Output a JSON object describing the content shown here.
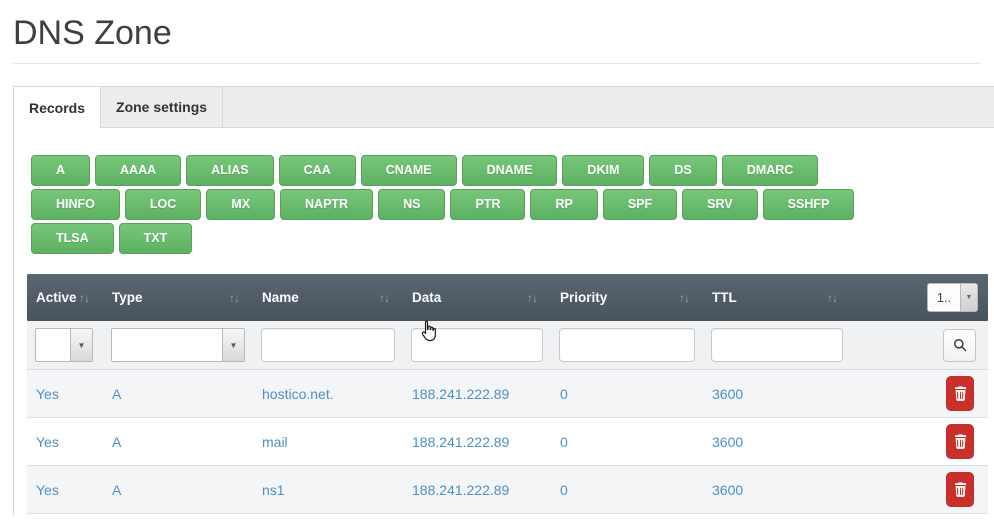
{
  "page": {
    "title": "DNS Zone"
  },
  "tabs": [
    {
      "label": "Records",
      "active": true
    },
    {
      "label": "Zone settings",
      "active": false
    }
  ],
  "record_type_rows": [
    [
      "A",
      "AAAA",
      "ALIAS",
      "CAA",
      "CNAME",
      "DNAME",
      "DKIM",
      "DS",
      "DMARC"
    ],
    [
      "HINFO",
      "LOC",
      "MX",
      "NAPTR",
      "NS",
      "PTR",
      "RP",
      "SPF",
      "SRV",
      "SSHFP"
    ],
    [
      "TLSA",
      "TXT"
    ]
  ],
  "table": {
    "columns": [
      {
        "label": "Active",
        "sortable": true
      },
      {
        "label": "Type",
        "sortable": true
      },
      {
        "label": "Name",
        "sortable": true
      },
      {
        "label": "Data",
        "sortable": true
      },
      {
        "label": "Priority",
        "sortable": true
      },
      {
        "label": "TTL",
        "sortable": true
      }
    ],
    "pagination": {
      "value": "1.."
    },
    "filters": {
      "active_value": "",
      "type_value": "",
      "name_value": "",
      "data_value": "",
      "priority_value": "",
      "ttl_value": ""
    },
    "rows": [
      {
        "active": "Yes",
        "type": "A",
        "name": "hostico.net.",
        "data": "188.241.222.89",
        "priority": "0",
        "ttl": "3600"
      },
      {
        "active": "Yes",
        "type": "A",
        "name": "mail",
        "data": "188.241.222.89",
        "priority": "0",
        "ttl": "3600"
      },
      {
        "active": "Yes",
        "type": "A",
        "name": "ns1",
        "data": "188.241.222.89",
        "priority": "0",
        "ttl": "3600"
      }
    ]
  },
  "icons": {
    "sort_glyph": "↑↓",
    "caret_glyph": "▼",
    "search": "search-icon",
    "trash": "trash-icon",
    "cursor": "hand-cursor"
  },
  "colors": {
    "accent_green": "#66bb6a",
    "header_dark": "#4e5a66",
    "link_blue": "#4e90c5",
    "danger_red": "#c9302c",
    "stripe_gray": "#f3f5f7"
  }
}
